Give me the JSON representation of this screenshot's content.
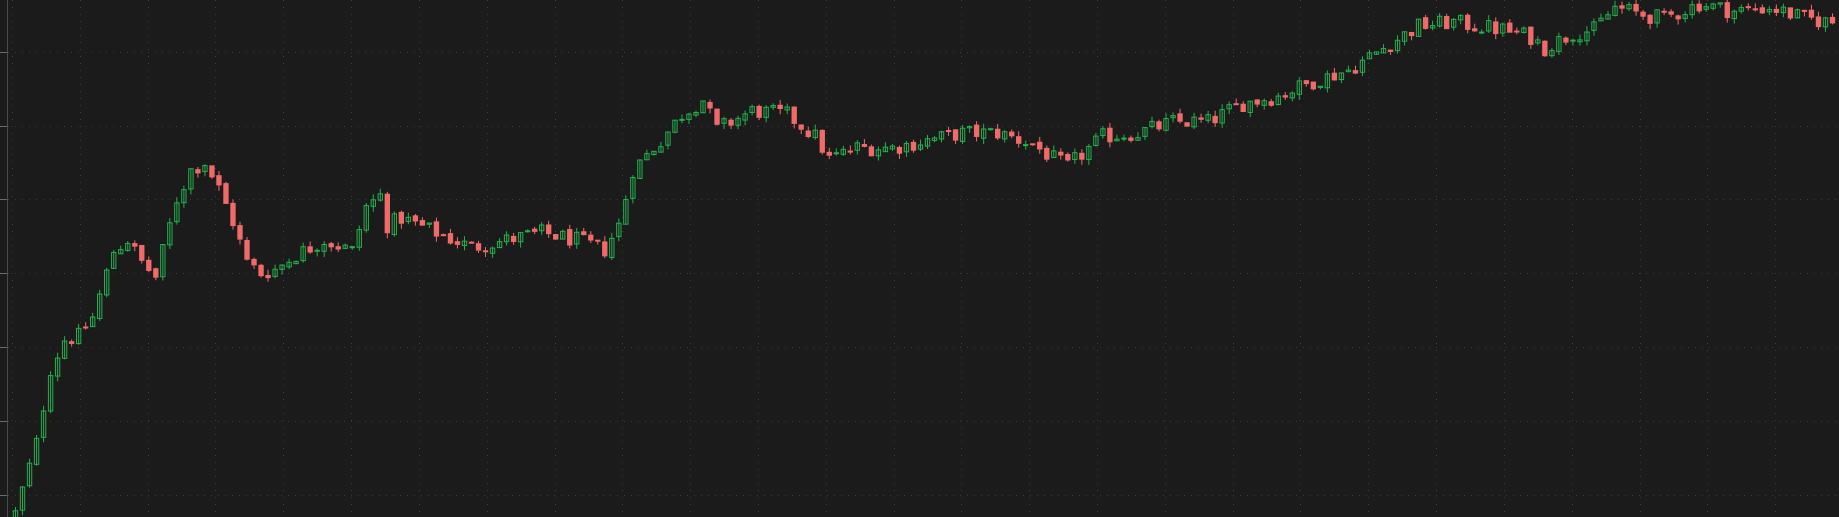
{
  "chart_data": {
    "type": "candlestick",
    "title": "",
    "xlabel": "",
    "ylabel": "",
    "grid": true,
    "legend": "none",
    "ylim": [
      0,
      7
    ],
    "y_gridlines": [
      0.3,
      1.3,
      2.3,
      3.3,
      4.3,
      5.3,
      6.3
    ],
    "x_gridline_count": 27,
    "colors": {
      "background": "#1b1b1c",
      "up": "#22b14c",
      "down": "#f06a6a",
      "grid": "#3c3c3f"
    },
    "candle_count": 260,
    "close_path": [
      [
        0,
        0.05
      ],
      [
        3,
        1.0
      ],
      [
        5,
        2.0
      ],
      [
        7,
        2.4
      ],
      [
        9,
        2.45
      ],
      [
        11,
        2.7
      ],
      [
        14,
        3.6
      ],
      [
        16,
        3.75
      ],
      [
        18,
        3.45
      ],
      [
        20,
        3.25
      ],
      [
        23,
        4.3
      ],
      [
        25,
        4.7
      ],
      [
        27,
        4.8
      ],
      [
        29,
        4.45
      ],
      [
        31,
        4.0
      ],
      [
        33,
        3.45
      ],
      [
        35,
        3.3
      ],
      [
        37,
        3.35
      ],
      [
        40,
        3.55
      ],
      [
        44,
        3.75
      ],
      [
        48,
        3.6
      ],
      [
        50,
        4.2
      ],
      [
        52,
        4.35
      ],
      [
        53,
        3.95
      ],
      [
        55,
        4.05
      ],
      [
        60,
        3.85
      ],
      [
        65,
        3.65
      ],
      [
        70,
        3.75
      ],
      [
        75,
        3.85
      ],
      [
        80,
        3.75
      ],
      [
        84,
        3.62
      ],
      [
        86,
        3.95
      ],
      [
        88,
        4.7
      ],
      [
        92,
        5.1
      ],
      [
        95,
        5.45
      ],
      [
        98,
        5.65
      ],
      [
        100,
        5.25
      ],
      [
        105,
        5.5
      ],
      [
        110,
        5.45
      ],
      [
        114,
        5.15
      ],
      [
        116,
        4.85
      ],
      [
        120,
        5.0
      ],
      [
        125,
        5.0
      ],
      [
        130,
        5.1
      ],
      [
        135,
        5.2
      ],
      [
        140,
        5.2
      ],
      [
        145,
        5.05
      ],
      [
        148,
        4.85
      ],
      [
        150,
        4.75
      ],
      [
        155,
        5.15
      ],
      [
        160,
        5.2
      ],
      [
        165,
        5.35
      ],
      [
        170,
        5.35
      ],
      [
        175,
        5.6
      ],
      [
        180,
        5.7
      ],
      [
        185,
        5.9
      ],
      [
        190,
        6.05
      ],
      [
        195,
        6.35
      ],
      [
        200,
        6.65
      ],
      [
        205,
        6.7
      ],
      [
        208,
        6.65
      ],
      [
        212,
        6.6
      ],
      [
        216,
        6.5
      ],
      [
        218,
        6.35
      ],
      [
        222,
        6.55
      ],
      [
        225,
        6.6
      ],
      [
        228,
        6.9
      ],
      [
        232,
        6.8
      ],
      [
        235,
        6.75
      ],
      [
        240,
        6.95
      ],
      [
        245,
        6.85
      ],
      [
        250,
        6.9
      ],
      [
        255,
        6.75
      ],
      [
        259,
        6.7
      ]
    ]
  }
}
